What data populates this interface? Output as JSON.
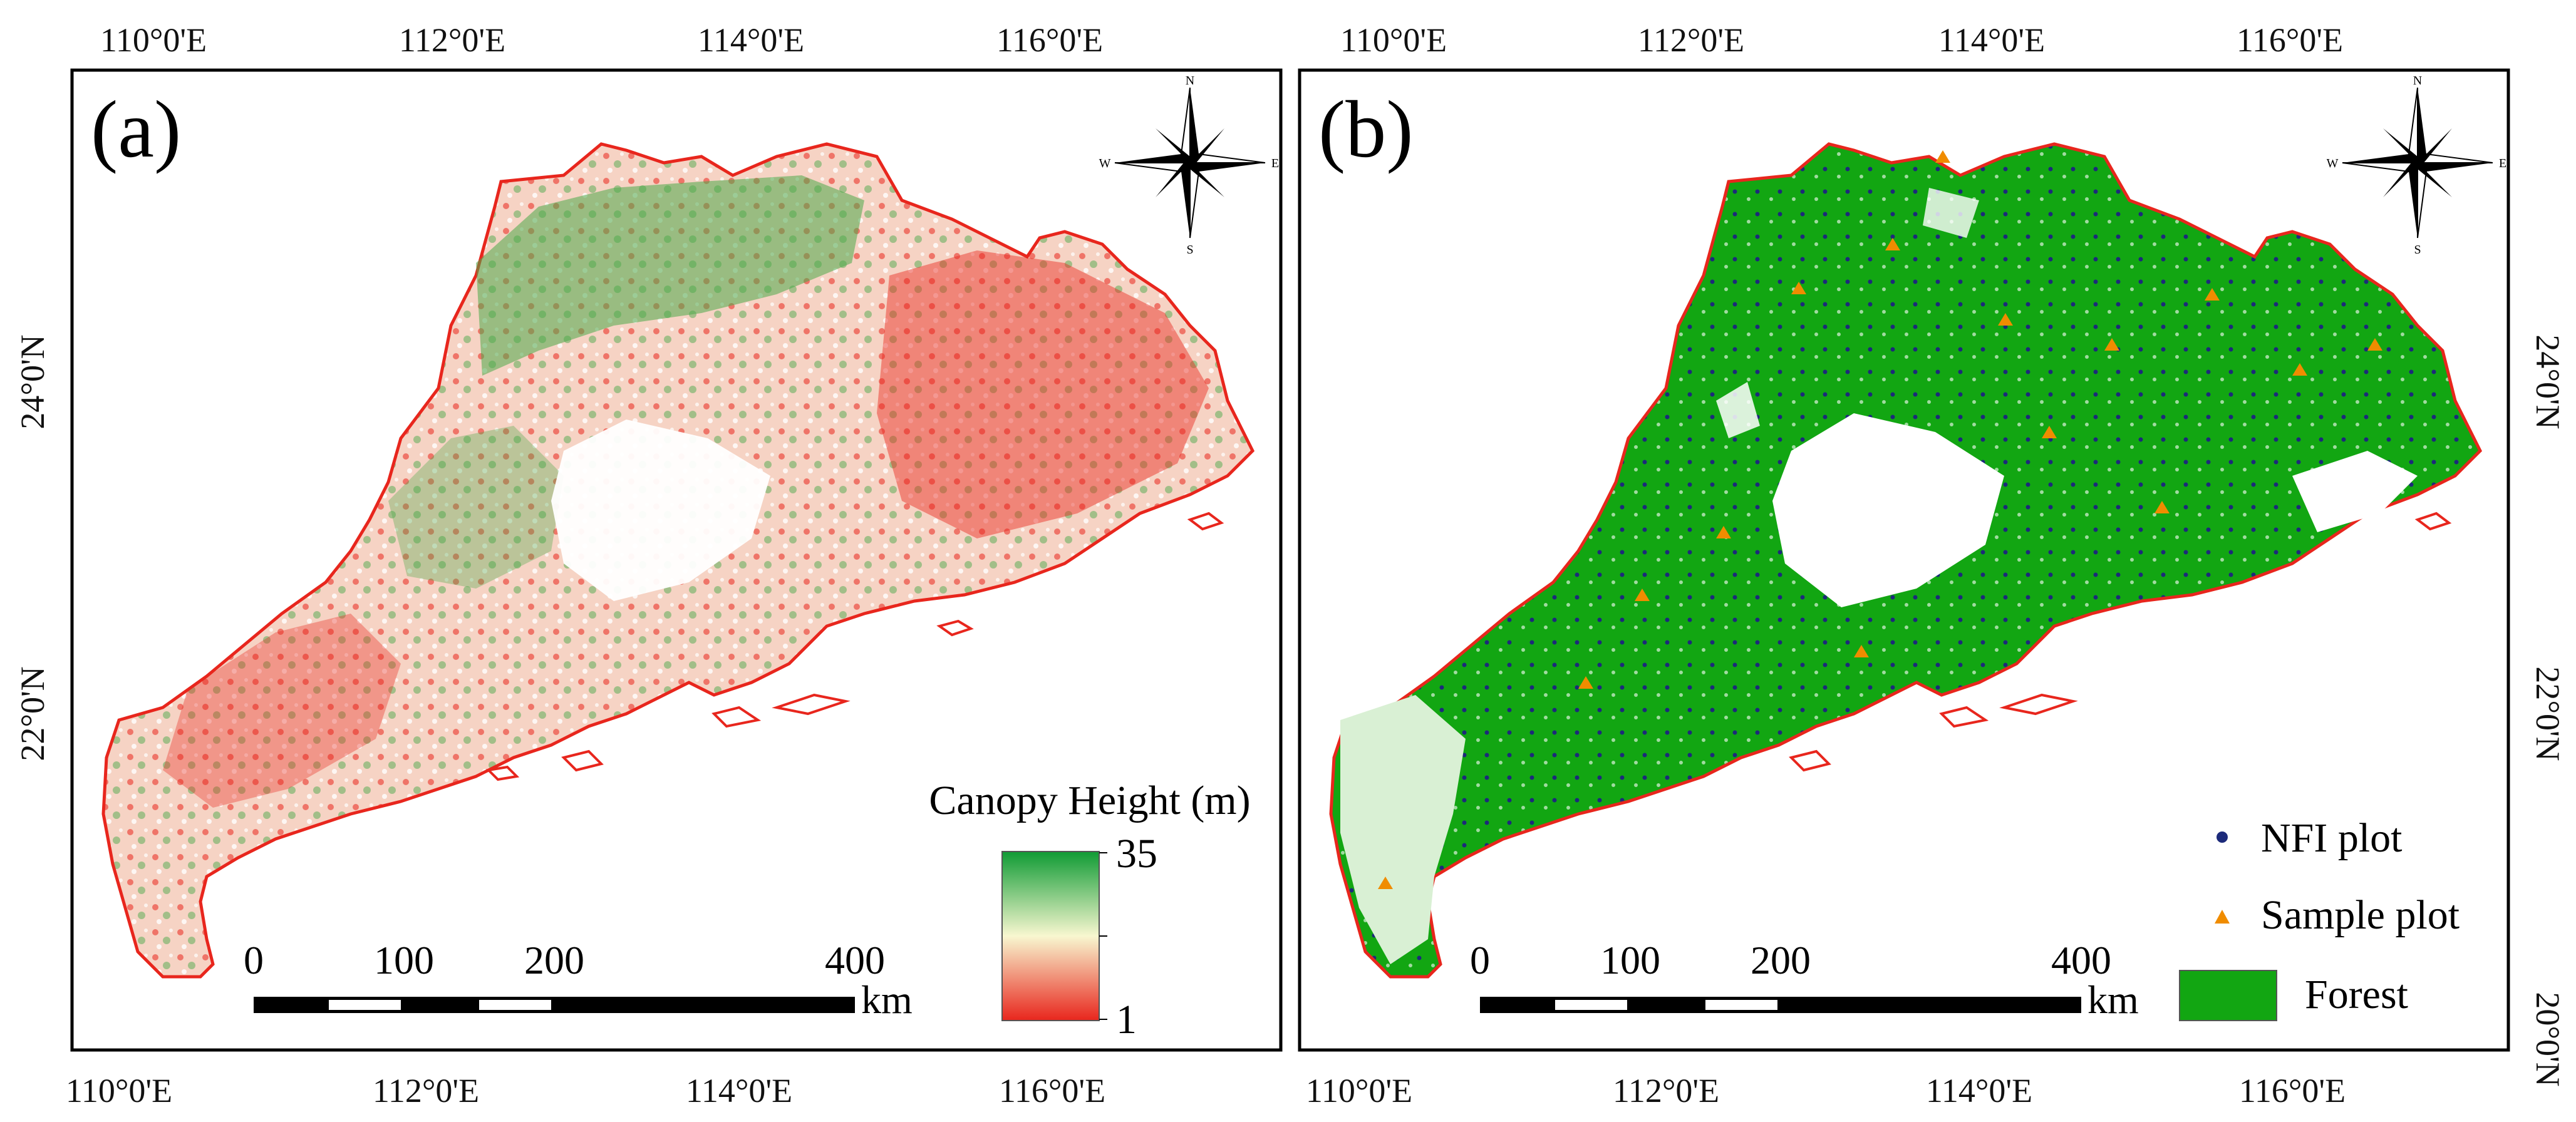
{
  "panels": [
    {
      "label": "(a)",
      "top_ticks": [
        "110°0'E",
        "112°0'E",
        "114°0'E",
        "116°0'E"
      ],
      "bottom_ticks": [
        "110°0'E",
        "112°0'E",
        "114°0'E",
        "116°0'E"
      ],
      "left_ticks": [
        "24°0'N",
        "22°0'N"
      ],
      "legend": {
        "title": "Canopy Height (m)",
        "max_label": "35",
        "min_label": "1",
        "colors": [
          "#0f9b34",
          "#f8f7d0",
          "#e8261d"
        ]
      },
      "scale": {
        "labels": [
          "0",
          "100",
          "200",
          "400"
        ],
        "unit": "km"
      },
      "compass": {
        "n": "N",
        "s": "S",
        "e": "E",
        "w": "W"
      }
    },
    {
      "label": "(b)",
      "top_ticks": [
        "110°0'E",
        "112°0'E",
        "114°0'E",
        "116°0'E"
      ],
      "bottom_ticks": [
        "110°0'E",
        "112°0'E",
        "114°0'E",
        "116°0'E"
      ],
      "right_ticks": [
        "24°0'N",
        "22°0'N",
        "20°0'N"
      ],
      "legend": {
        "nfi_label": "NFI plot",
        "sample_label": "Sample plot",
        "forest_label": "Forest",
        "nfi_color": "#1c2a7a",
        "sample_color": "#f08c00",
        "forest_color": "#12a612"
      },
      "scale": {
        "labels": [
          "0",
          "100",
          "200",
          "400"
        ],
        "unit": "km"
      },
      "compass": {
        "n": "N",
        "s": "S",
        "e": "E",
        "w": "W"
      }
    }
  ],
  "boundary_color": "#e8261d"
}
